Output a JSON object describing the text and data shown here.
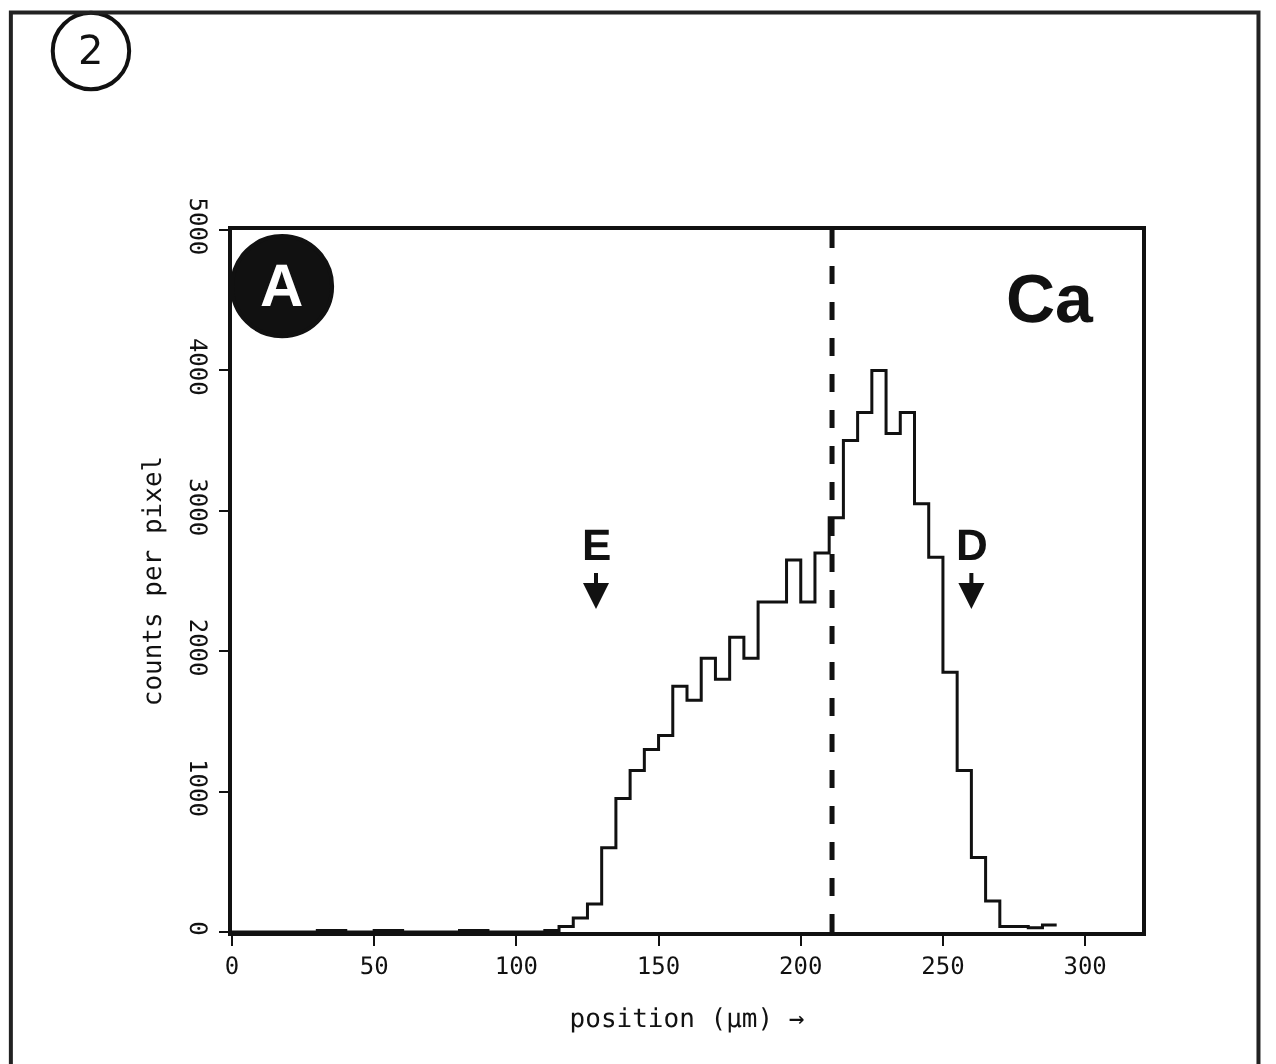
{
  "chart_data": {
    "type": "histogram",
    "xlabel": "position (µm) →",
    "ylabel": "counts per pixel",
    "bins": [
      0,
      5,
      10,
      15,
      20,
      25,
      30,
      35,
      40,
      45,
      50,
      55,
      60,
      65,
      70,
      75,
      80,
      85,
      90,
      95,
      100,
      105,
      110,
      115,
      120,
      125,
      130,
      135,
      140,
      145,
      150,
      155,
      160,
      165,
      170,
      175,
      180,
      185,
      190,
      195,
      200,
      205,
      210,
      215,
      220,
      225,
      230,
      235,
      240,
      245,
      250,
      255,
      260,
      265,
      270,
      275,
      280,
      285,
      290
    ],
    "values": [
      0,
      0,
      0,
      0,
      0,
      0,
      10,
      10,
      0,
      0,
      10,
      10,
      0,
      0,
      0,
      0,
      10,
      10,
      0,
      0,
      0,
      0,
      10,
      40,
      100,
      200,
      600,
      950,
      1150,
      1300,
      1400,
      1750,
      1650,
      1950,
      1800,
      2100,
      1950,
      2350,
      2350,
      2650,
      2350,
      2700,
      2950,
      3500,
      3700,
      4000,
      3550,
      3700,
      3050,
      2670,
      1850,
      1150,
      530,
      220,
      40,
      40,
      30,
      50
    ],
    "color": "#111111",
    "xlim": [
      0,
      320
    ],
    "xticks": [
      0,
      50,
      100,
      150,
      200,
      250,
      300
    ],
    "ylim": [
      0,
      5000
    ],
    "yticks": [
      0,
      1000,
      2000,
      3000,
      4000,
      5000
    ],
    "ref_lines": [
      {
        "axis": "x",
        "value": 211,
        "color": "#111111",
        "line_style": "dashed"
      }
    ],
    "annotations": [
      "2",
      "A",
      "Ca",
      "E",
      "D"
    ]
  }
}
